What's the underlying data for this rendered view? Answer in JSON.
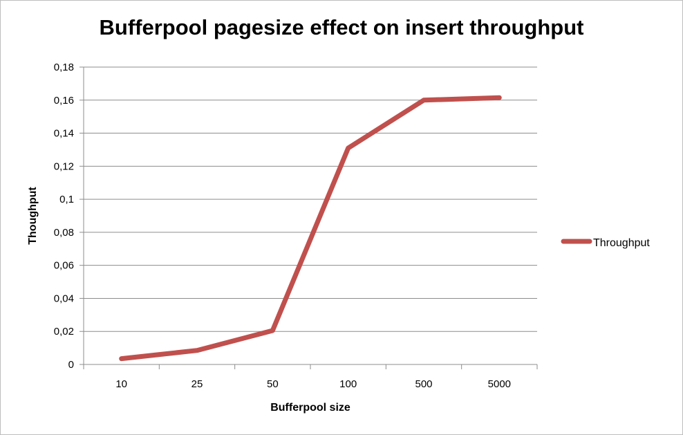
{
  "chart_data": {
    "type": "line",
    "title": "Bufferpool pagesize effect on insert throughput",
    "xlabel": "Bufferpool size",
    "ylabel": "Thoughput",
    "categories": [
      "10",
      "25",
      "50",
      "100",
      "500",
      "5000"
    ],
    "series": [
      {
        "name": "Throughput",
        "values": [
          0.0035,
          0.0085,
          0.0205,
          0.131,
          0.16,
          0.1615
        ],
        "color": "#c0504d"
      }
    ],
    "ylim": [
      0,
      0.18
    ],
    "yticks": [
      0,
      0.02,
      0.04,
      0.06,
      0.08,
      0.1,
      0.12,
      0.14,
      0.16,
      0.18
    ],
    "ytick_labels": [
      "0",
      "0,02",
      "0,04",
      "0,06",
      "0,08",
      "0,1",
      "0,12",
      "0,14",
      "0,16",
      "0,18"
    ],
    "grid": true,
    "legend": "right"
  }
}
